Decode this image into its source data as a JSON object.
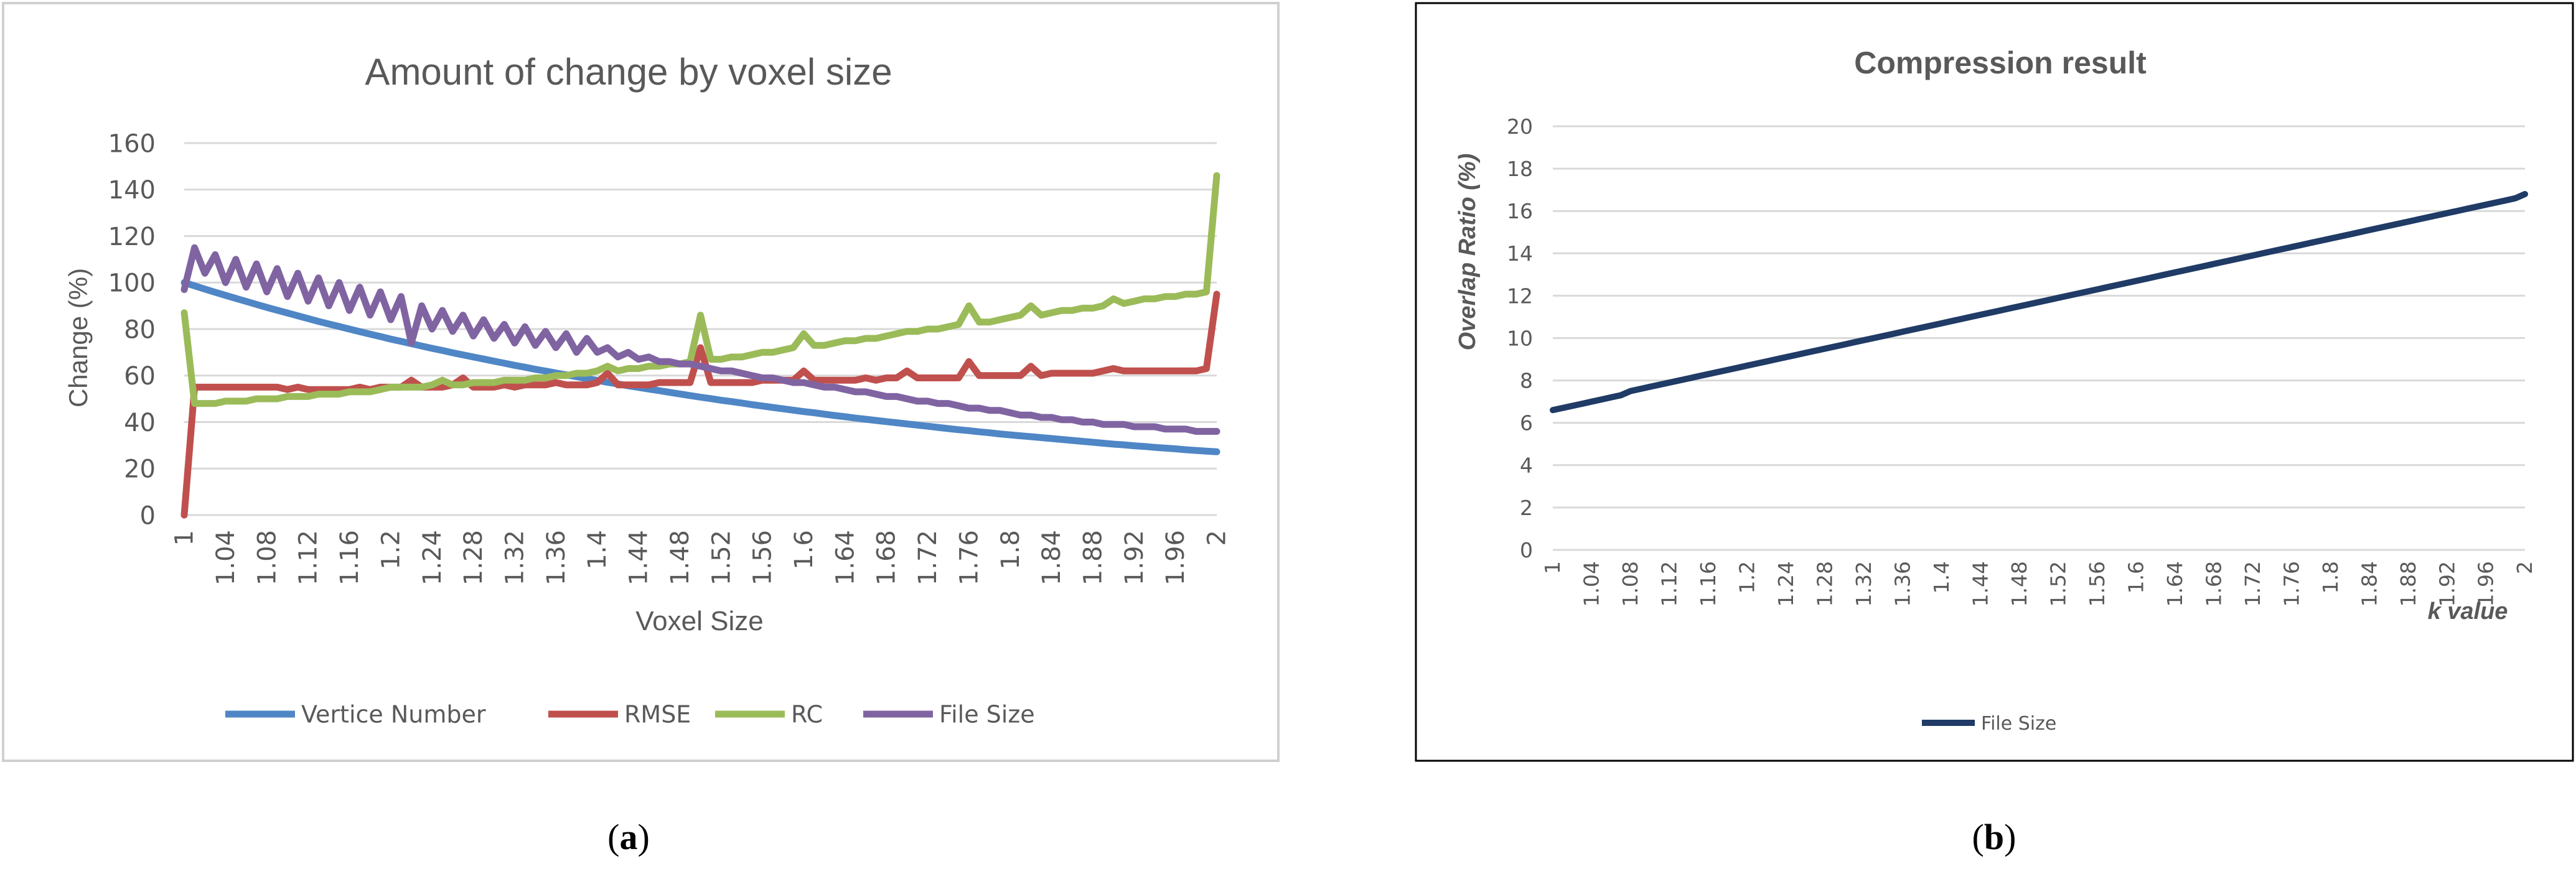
{
  "chart_data": [
    {
      "type": "line",
      "panel_label": "a",
      "title": "Amount of change by voxel size",
      "xlabel": "Voxel Size",
      "ylabel": "Change (%)",
      "ylim": [
        0,
        160
      ],
      "y_ticks": [
        "0",
        "20",
        "40",
        "60",
        "80",
        "100",
        "120",
        "140",
        "160"
      ],
      "x_ticks": [
        "1",
        "1.04",
        "1.08",
        "1.12",
        "1.16",
        "1.2",
        "1.24",
        "1.28",
        "1.32",
        "1.36",
        "1.4",
        "1.44",
        "1.48",
        "1.52",
        "1.56",
        "1.6",
        "1.64",
        "1.68",
        "1.72",
        "1.76",
        "1.8",
        "1.84",
        "1.88",
        "1.92",
        "1.96",
        "2"
      ],
      "grid": true,
      "legend_position": "bottom",
      "series": [
        {
          "name": "Vertice Number",
          "color": "#4f86c6",
          "values": [
            100,
            98.6,
            97.2,
            95.8,
            94.5,
            93.2,
            91.9,
            90.6,
            89.3,
            88.1,
            86.9,
            85.7,
            84.5,
            83.3,
            82.2,
            81.1,
            80,
            78.9,
            77.8,
            76.8,
            75.7,
            74.7,
            73.7,
            72.7,
            71.7,
            70.8,
            69.8,
            68.9,
            68,
            67.1,
            66.2,
            65.3,
            64.4,
            63.6,
            62.7,
            61.9,
            61.1,
            60.3,
            59.5,
            58.7,
            57.9,
            57.1,
            56.4,
            55.6,
            54.9,
            54.2,
            53.5,
            52.8,
            52.1,
            51.4,
            50.7,
            50.1,
            49.4,
            48.8,
            48.2,
            47.5,
            46.9,
            46.3,
            45.7,
            45.1,
            44.5,
            44,
            43.4,
            42.8,
            42.3,
            41.7,
            41.2,
            40.7,
            40.2,
            39.7,
            39.2,
            38.7,
            38.2,
            37.7,
            37.2,
            36.7,
            36.3,
            35.8,
            35.4,
            34.9,
            34.5,
            34.1,
            33.7,
            33.3,
            32.9,
            32.5,
            32.1,
            31.7,
            31.3,
            30.9,
            30.5,
            30.2,
            29.8,
            29.5,
            29.1,
            28.8,
            28.5,
            28.1,
            27.8,
            27.5,
            27.2
          ]
        },
        {
          "name": "RMSE",
          "color": "#c0504d",
          "values": [
            0,
            55,
            55,
            55,
            55,
            55,
            55,
            55,
            55,
            55,
            54,
            55,
            54,
            54,
            54,
            54,
            54,
            55,
            54,
            55,
            55,
            55,
            58,
            55,
            55,
            55,
            56,
            59,
            55,
            55,
            55,
            56,
            55,
            56,
            56,
            56,
            57,
            56,
            56,
            56,
            57,
            61,
            56,
            56,
            56,
            56,
            57,
            57,
            57,
            57,
            72,
            57,
            57,
            57,
            57,
            57,
            58,
            58,
            58,
            58,
            62,
            58,
            58,
            58,
            58,
            58,
            59,
            58,
            59,
            59,
            62,
            59,
            59,
            59,
            59,
            59,
            66,
            60,
            60,
            60,
            60,
            60,
            64,
            60,
            61,
            61,
            61,
            61,
            61,
            62,
            63,
            62,
            62,
            62,
            62,
            62,
            62,
            62,
            62,
            63,
            95
          ]
        },
        {
          "name": "RC",
          "color": "#9bbb59",
          "values": [
            87,
            48,
            48,
            48,
            49,
            49,
            49,
            50,
            50,
            50,
            51,
            51,
            51,
            52,
            52,
            52,
            53,
            53,
            53,
            54,
            55,
            55,
            55,
            55,
            56,
            58,
            56,
            56,
            57,
            57,
            57,
            58,
            58,
            58,
            59,
            59,
            60,
            60,
            61,
            61,
            62,
            64,
            62,
            63,
            63,
            64,
            64,
            65,
            65,
            66,
            86,
            67,
            67,
            68,
            68,
            69,
            70,
            70,
            71,
            72,
            78,
            73,
            73,
            74,
            75,
            75,
            76,
            76,
            77,
            78,
            79,
            79,
            80,
            80,
            81,
            82,
            90,
            83,
            83,
            84,
            85,
            86,
            90,
            86,
            87,
            88,
            88,
            89,
            89,
            90,
            93,
            91,
            92,
            93,
            93,
            94,
            94,
            95,
            95,
            96,
            146
          ]
        },
        {
          "name": "File Size",
          "color": "#8064a2",
          "values": [
            97,
            115,
            104,
            112,
            100,
            110,
            98,
            108,
            96,
            106,
            94,
            104,
            92,
            102,
            90,
            100,
            88,
            98,
            86,
            96,
            84,
            94,
            74,
            90,
            80,
            88,
            79,
            86,
            77,
            84,
            76,
            82,
            74,
            81,
            73,
            79,
            72,
            78,
            70,
            76,
            70,
            72,
            68,
            70,
            67,
            68,
            66,
            66,
            65,
            65,
            64,
            63,
            62,
            62,
            61,
            60,
            59,
            59,
            58,
            57,
            57,
            56,
            55,
            55,
            54,
            53,
            53,
            52,
            51,
            51,
            50,
            49,
            49,
            48,
            48,
            47,
            46,
            46,
            45,
            45,
            44,
            43,
            43,
            42,
            42,
            41,
            41,
            40,
            40,
            39,
            39,
            39,
            38,
            38,
            38,
            37,
            37,
            37,
            36,
            36,
            36
          ]
        }
      ]
    },
    {
      "type": "line",
      "panel_label": "b",
      "title": "Compression result",
      "xlabel": "k value",
      "ylabel": "Overlap Ratio (%)",
      "ylim": [
        0,
        20
      ],
      "y_ticks": [
        "0",
        "2",
        "4",
        "6",
        "8",
        "10",
        "12",
        "14",
        "16",
        "18",
        "20"
      ],
      "x_ticks": [
        "1",
        "1.04",
        "1.08",
        "1.12",
        "1.16",
        "1.2",
        "1.24",
        "1.28",
        "1.32",
        "1.36",
        "1.4",
        "1.44",
        "1.48",
        "1.52",
        "1.56",
        "1.6",
        "1.64",
        "1.68",
        "1.72",
        "1.76",
        "1.8",
        "1.84",
        "1.88",
        "1.92",
        "1.96",
        "2"
      ],
      "grid": true,
      "legend_position": "bottom",
      "series": [
        {
          "name": "File Size",
          "color": "#1f3b66",
          "values": [
            6.6,
            6.7,
            6.8,
            6.9,
            7,
            7.1,
            7.2,
            7.3,
            7.5,
            7.6,
            7.7,
            7.8,
            7.9,
            8,
            8.1,
            8.2,
            8.3,
            8.4,
            8.5,
            8.6,
            8.7,
            8.8,
            8.9,
            9,
            9.1,
            9.2,
            9.3,
            9.4,
            9.5,
            9.6,
            9.7,
            9.8,
            9.9,
            10,
            10.1,
            10.2,
            10.3,
            10.4,
            10.5,
            10.6,
            10.7,
            10.8,
            10.9,
            11,
            11.1,
            11.2,
            11.3,
            11.4,
            11.5,
            11.6,
            11.7,
            11.8,
            11.9,
            12,
            12.1,
            12.2,
            12.3,
            12.4,
            12.5,
            12.6,
            12.7,
            12.8,
            12.9,
            13,
            13.1,
            13.2,
            13.3,
            13.4,
            13.5,
            13.6,
            13.7,
            13.8,
            13.9,
            14,
            14.1,
            14.2,
            14.3,
            14.4,
            14.5,
            14.6,
            14.7,
            14.8,
            14.9,
            15,
            15.1,
            15.2,
            15.3,
            15.4,
            15.5,
            15.6,
            15.7,
            15.8,
            15.9,
            16,
            16.1,
            16.2,
            16.3,
            16.4,
            16.5,
            16.6,
            16.8
          ]
        }
      ]
    }
  ]
}
